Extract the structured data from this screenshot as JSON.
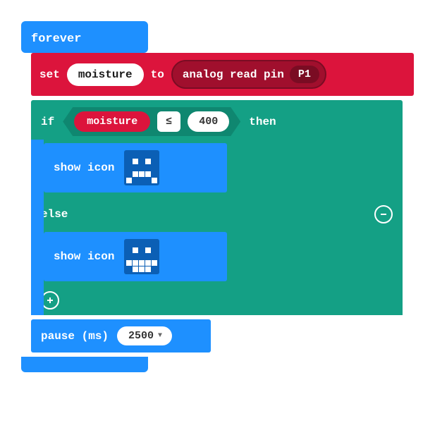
{
  "forever": {
    "label": "forever"
  },
  "set": {
    "label_set": "set",
    "variable": "moisture",
    "label_to": "to",
    "read_label": "analog read pin",
    "pin": "P1"
  },
  "if": {
    "label_if": "if",
    "variable": "moisture",
    "operator": "≤",
    "value": "400",
    "label_then": "then",
    "label_else": "else"
  },
  "show_icon1": {
    "label": "show icon",
    "pattern": [
      [
        0,
        0,
        0,
        0,
        0
      ],
      [
        0,
        1,
        0,
        1,
        0
      ],
      [
        0,
        0,
        0,
        0,
        0
      ],
      [
        0,
        1,
        1,
        1,
        0
      ],
      [
        1,
        0,
        0,
        0,
        1
      ]
    ]
  },
  "show_icon2": {
    "label": "show icon",
    "pattern": [
      [
        0,
        0,
        0,
        0,
        0
      ],
      [
        0,
        1,
        0,
        1,
        0
      ],
      [
        0,
        0,
        0,
        0,
        0
      ],
      [
        1,
        1,
        1,
        1,
        1
      ],
      [
        0,
        1,
        1,
        1,
        0
      ]
    ]
  },
  "pause": {
    "label": "pause (ms)",
    "value": "2500"
  },
  "colors": {
    "loop": "#1e90ff",
    "variable": "#dc143c",
    "logic": "#14a085",
    "pin_inner": "#a00f2d"
  }
}
